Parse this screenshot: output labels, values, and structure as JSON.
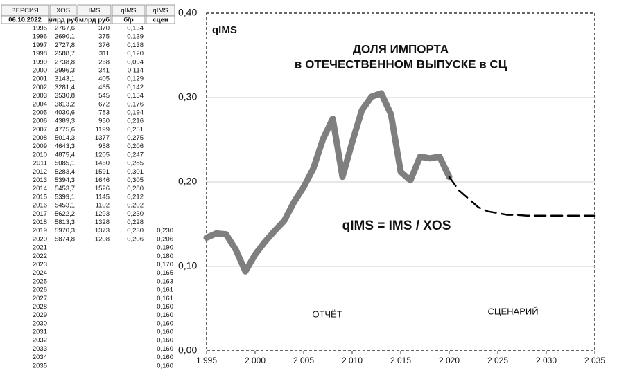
{
  "table": {
    "header": {
      "year": "ВЕРСИЯ",
      "xos": "XOS",
      "ims": "IMS",
      "q": "qIMS",
      "scen": "qIMS"
    },
    "subheader": {
      "year": "06.10.2022",
      "xos": "млрд руб",
      "ims": "млрд руб",
      "q": "б/р",
      "scen": "сцен"
    },
    "rows": [
      {
        "year": "1995",
        "xos": "2767,6",
        "ims": "370",
        "q": "0,134"
      },
      {
        "year": "1996",
        "xos": "2690,1",
        "ims": "375",
        "q": "0,139"
      },
      {
        "year": "1997",
        "xos": "2727,8",
        "ims": "376",
        "q": "0,138"
      },
      {
        "year": "1998",
        "xos": "2588,7",
        "ims": "311",
        "q": "0,120"
      },
      {
        "year": "1999",
        "xos": "2738,8",
        "ims": "258",
        "q": "0,094"
      },
      {
        "year": "2000",
        "xos": "2996,3",
        "ims": "341",
        "q": "0,114"
      },
      {
        "year": "2001",
        "xos": "3143,1",
        "ims": "405",
        "q": "0,129"
      },
      {
        "year": "2002",
        "xos": "3281,4",
        "ims": "465",
        "q": "0,142"
      },
      {
        "year": "2003",
        "xos": "3530,8",
        "ims": "545",
        "q": "0,154"
      },
      {
        "year": "2004",
        "xos": "3813,2",
        "ims": "672",
        "q": "0,176"
      },
      {
        "year": "2005",
        "xos": "4030,6",
        "ims": "783",
        "q": "0,194"
      },
      {
        "year": "2006",
        "xos": "4389,3",
        "ims": "950",
        "q": "0,216"
      },
      {
        "year": "2007",
        "xos": "4775,6",
        "ims": "1199",
        "q": "0,251"
      },
      {
        "year": "2008",
        "xos": "5014,3",
        "ims": "1377",
        "q": "0,275"
      },
      {
        "year": "2009",
        "xos": "4643,3",
        "ims": "958",
        "q": "0,206"
      },
      {
        "year": "2010",
        "xos": "4875,4",
        "ims": "1205",
        "q": "0,247"
      },
      {
        "year": "2011",
        "xos": "5085,1",
        "ims": "1450",
        "q": "0,285"
      },
      {
        "year": "2012",
        "xos": "5283,4",
        "ims": "1591",
        "q": "0,301"
      },
      {
        "year": "2013",
        "xos": "5394,3",
        "ims": "1646",
        "q": "0,305"
      },
      {
        "year": "2014",
        "xos": "5453,7",
        "ims": "1526",
        "q": "0,280"
      },
      {
        "year": "2015",
        "xos": "5399,1",
        "ims": "1145",
        "q": "0,212"
      },
      {
        "year": "2016",
        "xos": "5453,1",
        "ims": "1102",
        "q": "0,202"
      },
      {
        "year": "2017",
        "xos": "5622,2",
        "ims": "1293",
        "q": "0,230"
      },
      {
        "year": "2018",
        "xos": "5813,3",
        "ims": "1328",
        "q": "0,228"
      },
      {
        "year": "2019",
        "xos": "5970,3",
        "ims": "1373",
        "q": "0,230",
        "scen": "0,230"
      },
      {
        "year": "2020",
        "xos": "5874,8",
        "ims": "1208",
        "q": "0,206",
        "scen": "0,206"
      },
      {
        "year": "2021",
        "scen": "0,190"
      },
      {
        "year": "2022",
        "scen": "0,180"
      },
      {
        "year": "2023",
        "scen": "0,170"
      },
      {
        "year": "2024",
        "scen": "0,165"
      },
      {
        "year": "2025",
        "scen": "0,163"
      },
      {
        "year": "2026",
        "scen": "0,161"
      },
      {
        "year": "2027",
        "scen": "0,161"
      },
      {
        "year": "2028",
        "scen": "0,160"
      },
      {
        "year": "2029",
        "scen": "0,160"
      },
      {
        "year": "2030",
        "scen": "0,160"
      },
      {
        "year": "2031",
        "scen": "0,160"
      },
      {
        "year": "2032",
        "scen": "0,160"
      },
      {
        "year": "2033",
        "scen": "0,160"
      },
      {
        "year": "2034",
        "scen": "0,160"
      },
      {
        "year": "2035",
        "scen": "0,160"
      }
    ]
  },
  "chart_data": {
    "type": "line",
    "label": "qIMS",
    "title": [
      "ДОЛЯ ИМПОРТА",
      "в ОТЕЧЕСТВЕННОМ ВЫПУСКЕ в СЦ"
    ],
    "formula": "qIMS = IMS / XOS",
    "x": [
      1995,
      1996,
      1997,
      1998,
      1999,
      2000,
      2001,
      2002,
      2003,
      2004,
      2005,
      2006,
      2007,
      2008,
      2009,
      2010,
      2011,
      2012,
      2013,
      2014,
      2015,
      2016,
      2017,
      2018,
      2019,
      2020,
      2021,
      2022,
      2023,
      2024,
      2025,
      2026,
      2027,
      2028,
      2029,
      2030,
      2031,
      2032,
      2033,
      2034,
      2035
    ],
    "series": [
      {
        "name": "ОТЧЁТ",
        "color": "#7f7f7f",
        "style": "solid",
        "values": [
          0.134,
          0.139,
          0.138,
          0.12,
          0.094,
          0.114,
          0.129,
          0.142,
          0.154,
          0.176,
          0.194,
          0.216,
          0.251,
          0.275,
          0.206,
          0.247,
          0.285,
          0.301,
          0.305,
          0.28,
          0.212,
          0.202,
          0.23,
          0.228,
          0.23,
          0.206,
          null,
          null,
          null,
          null,
          null,
          null,
          null,
          null,
          null,
          null,
          null,
          null,
          null,
          null,
          null
        ]
      },
      {
        "name": "СЦЕНАРИЙ",
        "color": "#000000",
        "style": "dashed",
        "values": [
          null,
          null,
          null,
          null,
          null,
          null,
          null,
          null,
          null,
          null,
          null,
          null,
          null,
          null,
          null,
          null,
          null,
          null,
          null,
          null,
          null,
          null,
          null,
          null,
          null,
          0.206,
          0.19,
          0.18,
          0.17,
          0.165,
          0.163,
          0.161,
          0.161,
          0.16,
          0.16,
          0.16,
          0.16,
          0.16,
          0.16,
          0.16,
          0.16
        ]
      }
    ],
    "xlim": [
      1995,
      2035
    ],
    "ylim": [
      0,
      0.4
    ],
    "xticks": [
      {
        "value": 1995,
        "label": "1 995"
      },
      {
        "value": 2000,
        "label": "2 000"
      },
      {
        "value": 2005,
        "label": "2 005"
      },
      {
        "value": 2010,
        "label": "2 010"
      },
      {
        "value": 2015,
        "label": "2 015"
      },
      {
        "value": 2020,
        "label": "2 020"
      },
      {
        "value": 2025,
        "label": "2 025"
      },
      {
        "value": 2030,
        "label": "2 030"
      },
      {
        "value": 2035,
        "label": "2 035"
      }
    ],
    "yticks": [
      {
        "value": 0,
        "label": "0,00"
      },
      {
        "value": 0.1,
        "label": "0,10"
      },
      {
        "value": 0.2,
        "label": "0,20"
      },
      {
        "value": 0.3,
        "label": "0,30"
      },
      {
        "value": 0.4,
        "label": "0,40"
      }
    ],
    "grid": true
  }
}
